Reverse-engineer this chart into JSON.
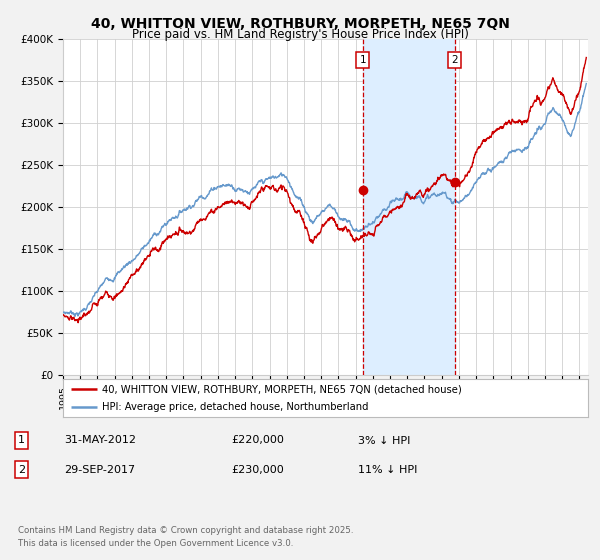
{
  "title1": "40, WHITTON VIEW, ROTHBURY, MORPETH, NE65 7QN",
  "title2": "Price paid vs. HM Land Registry's House Price Index (HPI)",
  "xlim_start": 1995.0,
  "xlim_end": 2025.5,
  "ylim": [
    0,
    400000
  ],
  "yticks": [
    0,
    50000,
    100000,
    150000,
    200000,
    250000,
    300000,
    350000,
    400000
  ],
  "ytick_labels": [
    "£0",
    "£50K",
    "£100K",
    "£150K",
    "£200K",
    "£250K",
    "£300K",
    "£350K",
    "£400K"
  ],
  "purchase1_date": 2012.415,
  "purchase1_price": 220000,
  "purchase1_label": "1",
  "purchase2_date": 2017.747,
  "purchase2_price": 230000,
  "purchase2_label": "2",
  "shade_color": "#ddeeff",
  "hpi_color": "#6699cc",
  "price_color": "#cc0000",
  "dashed_color": "#cc0000",
  "marker_color": "#cc0000",
  "legend_label1": "40, WHITTON VIEW, ROTHBURY, MORPETH, NE65 7QN (detached house)",
  "legend_label2": "HPI: Average price, detached house, Northumberland",
  "table_row1": [
    "1",
    "31-MAY-2012",
    "£220,000",
    "3% ↓ HPI"
  ],
  "table_row2": [
    "2",
    "29-SEP-2017",
    "£230,000",
    "11% ↓ HPI"
  ],
  "footer": "Contains HM Land Registry data © Crown copyright and database right 2025.\nThis data is licensed under the Open Government Licence v3.0.",
  "bg_color": "#f2f2f2"
}
